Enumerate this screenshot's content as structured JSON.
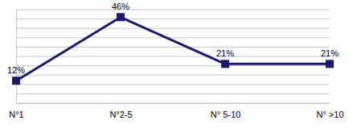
{
  "chart_data": {
    "type": "line",
    "categories": [
      "N°1",
      "N°2-5",
      "N° 5-10",
      "N° >10"
    ],
    "values": [
      12,
      46,
      21,
      21
    ],
    "value_labels": [
      "12%",
      "46%",
      "21%",
      "21%"
    ],
    "color": "#1a1a6e",
    "marker": "square",
    "ylim": [
      0,
      50
    ],
    "yticks": [
      0,
      5,
      10,
      15,
      20,
      25,
      30,
      35,
      40,
      45,
      50
    ],
    "grid": true,
    "data_labels": true,
    "tick_labels": "x"
  }
}
